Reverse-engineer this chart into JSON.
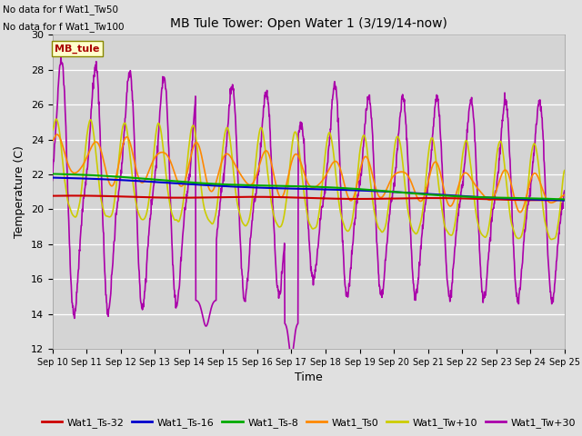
{
  "title": "MB Tule Tower: Open Water 1 (3/19/14-now)",
  "xlabel": "Time",
  "ylabel": "Temperature (C)",
  "no_data_text": [
    "No data for f Wat1_Tw50",
    "No data for f Wat1_Tw100"
  ],
  "mb_tule_label": "MB_tule",
  "x_tick_labels": [
    "Sep 10",
    "Sep 11",
    "Sep 12",
    "Sep 13",
    "Sep 14",
    "Sep 15",
    "Sep 16",
    "Sep 17",
    "Sep 18",
    "Sep 19",
    "Sep 20",
    "Sep 21",
    "Sep 22",
    "Sep 23",
    "Sep 24",
    "Sep 25"
  ],
  "ylim": [
    12,
    30
  ],
  "yticks": [
    12,
    14,
    16,
    18,
    20,
    22,
    24,
    26,
    28,
    30
  ],
  "figsize": [
    6.4,
    4.8
  ],
  "dpi": 100,
  "bg_color": "#e0e0e0",
  "plot_bg_color": "#d4d4d4",
  "legend_entries": [
    {
      "label": "Wat1_Ts-32",
      "color": "#cc0000"
    },
    {
      "label": "Wat1_Ts-16",
      "color": "#0000cc"
    },
    {
      "label": "Wat1_Ts-8",
      "color": "#00aa00"
    },
    {
      "label": "Wat1_Ts0",
      "color": "#ff8800"
    },
    {
      "label": "Wat1_Tw+10",
      "color": "#cccc00"
    },
    {
      "label": "Wat1_Tw+30",
      "color": "#aa00aa"
    }
  ]
}
